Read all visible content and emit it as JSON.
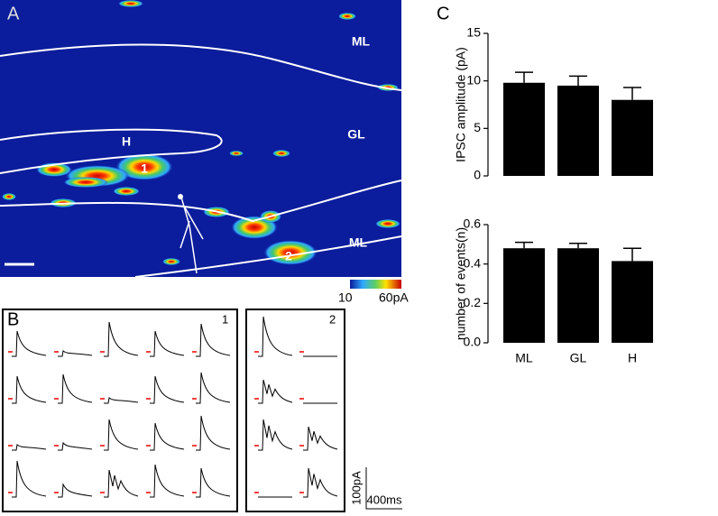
{
  "panel_labels": [
    "A",
    "B",
    "C"
  ],
  "heatmap": {
    "regions": [
      "ML",
      "GL",
      "H",
      "ML"
    ],
    "sites": [
      "1",
      "2"
    ],
    "colorbar": {
      "min": 10,
      "max_label": "60pA"
    }
  },
  "traces": {
    "groups": [
      "1",
      "2"
    ],
    "scale_y": "100pA",
    "scale_x": "400ms"
  },
  "chart_data": [
    {
      "type": "bar",
      "ylabel": "IPSC amplitude (pA)",
      "values": [
        9.8,
        9.5,
        8.0
      ],
      "errors": [
        1.1,
        1.0,
        1.3
      ],
      "color": "#000000",
      "ylim": [
        0,
        15
      ],
      "yticks": [
        0,
        5,
        10,
        15
      ]
    },
    {
      "type": "bar",
      "ylabel": "number of events(n)",
      "categories": [
        "ML",
        "GL",
        "H"
      ],
      "values": [
        0.48,
        0.48,
        0.415
      ],
      "errors": [
        0.03,
        0.025,
        0.065
      ],
      "color": "#000000",
      "ylim": [
        0,
        0.6
      ],
      "yticks": [
        {
          "value": 0,
          "label": "0.0"
        },
        0.2,
        0.4,
        0.6
      ]
    }
  ]
}
